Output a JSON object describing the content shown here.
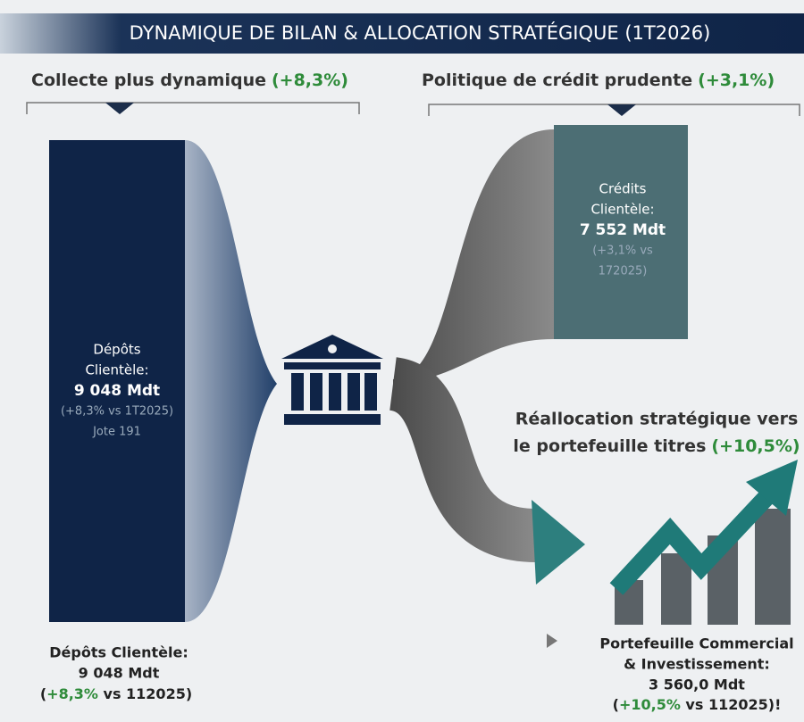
{
  "title": "DYNAMIQUE DE BILAN & ALLOCATION STRATÉGIQUE (1T2026)",
  "headings": [
    {
      "text": "Collecte plus dynamique",
      "highlight": "(+8,3%)"
    },
    {
      "text": "Politique de crédit prudente",
      "highlight": "(+3,1%)"
    }
  ],
  "deposits_block": {
    "lines": [
      "Dépôts",
      "Clientèle:",
      "9 048 Mdt",
      "(+8,3% vs 1T2025)",
      "Jote 191"
    ]
  },
  "credits_block": {
    "lines": [
      "Crédits",
      "Clientèle:",
      "7 552 Mdt",
      "(+3,1% vs",
      "172025)"
    ]
  },
  "reallocation": {
    "line1": "Réallocation stratégique vers",
    "line2": "le portefeuille titres",
    "highlight": "(+10,5%)"
  },
  "bottom_left": {
    "lines": [
      "Dépôts Clientèle:",
      "9 048 Mdt"
    ],
    "change": [
      "(",
      "+8,3%",
      " vs 112025)"
    ]
  },
  "bottom_right": {
    "lines": [
      "Portefeuille Commercial",
      "& Investissement:",
      "3 560,0 Mdt"
    ],
    "change": [
      "(",
      "+10,5%",
      " vs 112025)!"
    ]
  }
}
